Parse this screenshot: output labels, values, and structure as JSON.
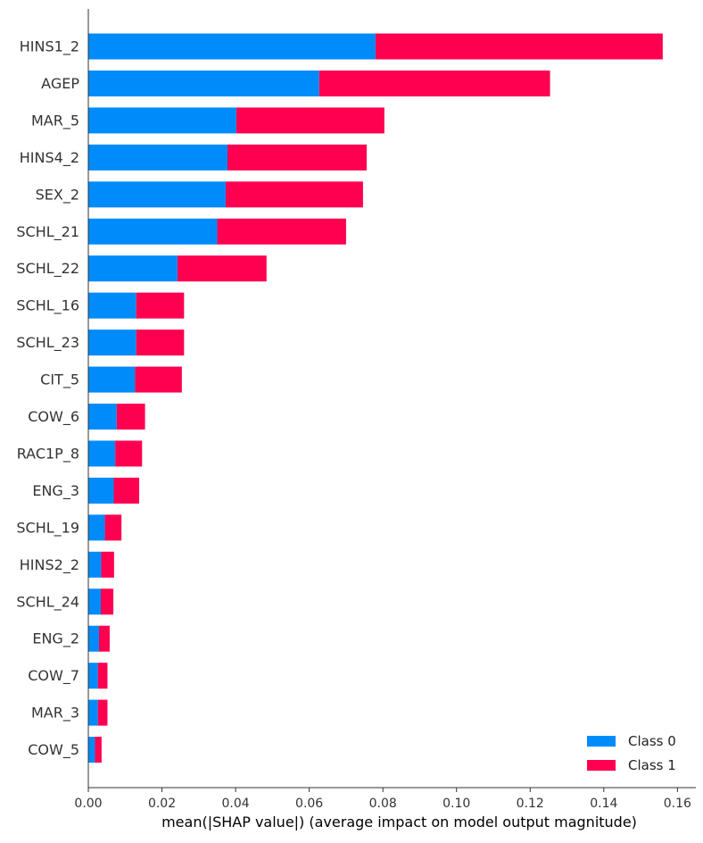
{
  "chart_data": {
    "type": "bar",
    "orientation": "horizontal",
    "stacked": true,
    "title": "",
    "xlabel": "mean(|SHAP value|) (average impact on model output magnitude)",
    "ylabel": "",
    "xlim": [
      0,
      0.165
    ],
    "xticks": [
      0.0,
      0.02,
      0.04,
      0.06,
      0.08,
      0.1,
      0.12,
      0.14,
      0.16
    ],
    "xtick_labels": [
      "0.00",
      "0.02",
      "0.04",
      "0.06",
      "0.08",
      "0.10",
      "0.12",
      "0.14",
      "0.16"
    ],
    "grid": false,
    "legend_position": "bottom-right",
    "categories": [
      "HINS1_2",
      "AGEP",
      "MAR_5",
      "HINS4_2",
      "SEX_2",
      "SCHL_21",
      "SCHL_22",
      "SCHL_16",
      "SCHL_23",
      "CIT_5",
      "COW_6",
      "RAC1P_8",
      "ENG_3",
      "SCHL_19",
      "HINS2_2",
      "SCHL_24",
      "ENG_2",
      "COW_7",
      "MAR_3",
      "COW_5"
    ],
    "series": [
      {
        "name": "Class 0",
        "color": "#008bfb",
        "values": [
          0.078,
          0.0627,
          0.0402,
          0.0378,
          0.0373,
          0.035,
          0.0242,
          0.013,
          0.013,
          0.0127,
          0.0077,
          0.0073,
          0.0069,
          0.0045,
          0.0035,
          0.0034,
          0.0029,
          0.0026,
          0.0026,
          0.0018
        ]
      },
      {
        "name": "Class 1",
        "color": "#ff0051",
        "values": [
          0.078,
          0.0627,
          0.0402,
          0.0378,
          0.0373,
          0.035,
          0.0242,
          0.013,
          0.013,
          0.0127,
          0.0077,
          0.0073,
          0.0069,
          0.0045,
          0.0035,
          0.0034,
          0.0029,
          0.0026,
          0.0026,
          0.0018
        ]
      }
    ]
  }
}
